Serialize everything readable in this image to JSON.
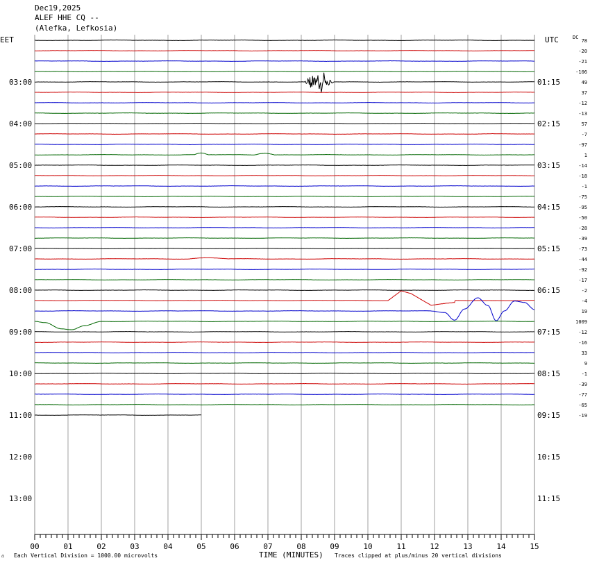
{
  "header": {
    "date": "Dec19,2025",
    "station": "ALEF HHE CQ --",
    "location": "(Alefka, Lefkosia)"
  },
  "left_zone": "EET",
  "right_zone": "UTC",
  "dc_label": "DC",
  "footer": {
    "logo": "⌂",
    "left_note": "Each Vertical Division = 1000.00 microvolts",
    "axis_title": "TIME (MINUTES)",
    "right_note": "Traces clipped at plus/minus 20 vertical divisions"
  },
  "colors": {
    "black": "#000000",
    "red": "#cc0000",
    "blue": "#0000cc",
    "green": "#006600",
    "grid": "#888888"
  },
  "chart_data": {
    "type": "line",
    "xlabel": "TIME (MINUTES)",
    "xlim": [
      0,
      15
    ],
    "x_ticks": [
      "00",
      "01",
      "02",
      "03",
      "04",
      "05",
      "06",
      "07",
      "08",
      "09",
      "10",
      "11",
      "12",
      "13",
      "14",
      "15"
    ],
    "left_hour_labels": [
      "03:00",
      "04:00",
      "05:00",
      "06:00",
      "07:00",
      "08:00",
      "09:00",
      "10:00",
      "11:00",
      "12:00",
      "13:00"
    ],
    "right_hour_labels": [
      "01:15",
      "02:15",
      "03:15",
      "04:15",
      "05:15",
      "06:15",
      "07:15",
      "08:15",
      "09:15",
      "10:15",
      "11:15"
    ],
    "dc_offsets": [
      "78",
      "-20",
      "-21",
      "-106",
      "49",
      "37",
      "-12",
      "-13",
      "57",
      "-7",
      "-97",
      "1",
      "-14",
      "-18",
      "-1",
      "-75",
      "-95",
      "-50",
      "-28",
      "-39",
      "-73",
      "-44",
      "-92",
      "-17",
      "-2",
      "-4",
      "19",
      "1009",
      "-12",
      "-16",
      "33",
      "9",
      "-1",
      "-39",
      "-77",
      "-65",
      "-19"
    ],
    "trace_colors": [
      "black",
      "red",
      "blue",
      "green"
    ],
    "events": [
      {
        "trace": 4,
        "start_min": 8.1,
        "end_min": 9.0,
        "kind": "burst",
        "amp_div": 1.3
      },
      {
        "trace": 11,
        "start_min": 4.8,
        "end_min": 5.2,
        "kind": "wave",
        "amp_div": 0.3
      },
      {
        "trace": 11,
        "start_min": 6.6,
        "end_min": 7.2,
        "kind": "wave",
        "amp_div": 0.3
      },
      {
        "trace": 21,
        "start_min": 4.6,
        "end_min": 5.8,
        "kind": "wave",
        "amp_div": 0.2
      },
      {
        "trace": 25,
        "start_min": 10.3,
        "end_min": 12.6,
        "kind": "red_swell"
      },
      {
        "trace": 26,
        "start_min": 11.8,
        "end_min": 15.0,
        "kind": "blue_swing"
      },
      {
        "trace": 27,
        "start_min": 0.0,
        "end_min": 2.0,
        "kind": "green_dip"
      }
    ],
    "last_trace_end_min": 5.0
  }
}
